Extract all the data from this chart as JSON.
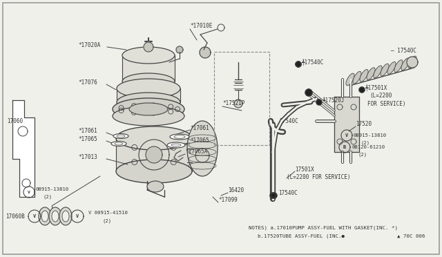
{
  "bg_color": "#f0f0eb",
  "border_color": "#999999",
  "line_color": "#444444",
  "text_color": "#333333",
  "notes_line1": "NOTES) a.17010PUMP ASSY-FUEL WITH GASKET(INC. *)",
  "notes_line2": "b.17520TUBE ASSY-FUEL (INC.",
  "ref_code": "▲ 70C 006",
  "figsize": [
    6.4,
    3.72
  ],
  "dpi": 100
}
